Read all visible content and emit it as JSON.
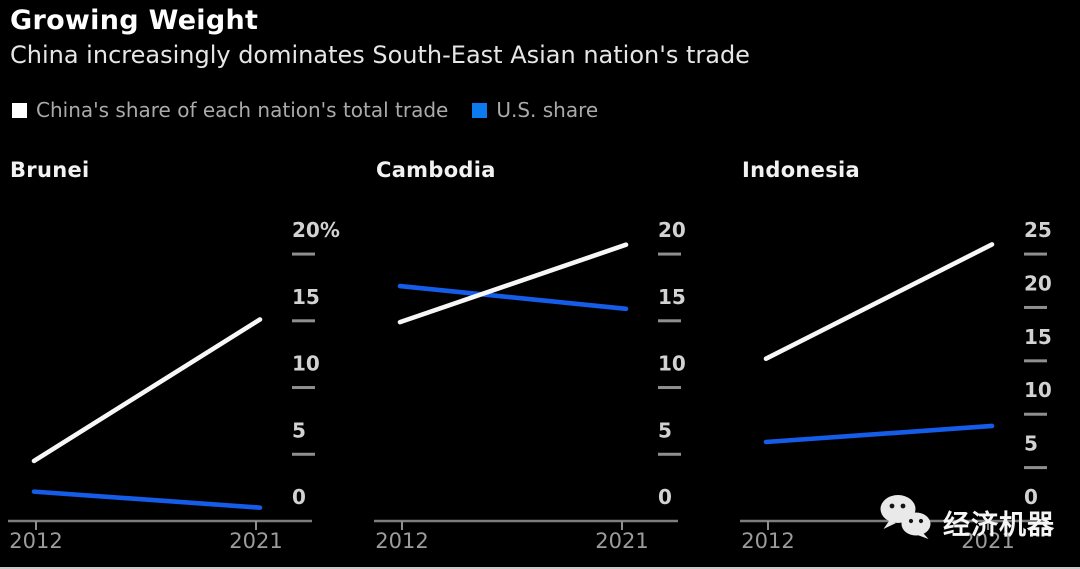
{
  "header": {
    "title": "Growing Weight",
    "subtitle": "China increasingly dominates South-East Asian nation's trade"
  },
  "legend": {
    "china_label": "China's share of each nation's total trade",
    "us_label": "U.S. share"
  },
  "watermark": {
    "icon": "wechat-icon",
    "text": "经济机器"
  },
  "colors": {
    "background": "#000000",
    "china_line": "#f7f7f7",
    "us_line": "#155de8",
    "legend_china_swatch": "#ffffff",
    "legend_us_swatch": "#0d7bf0",
    "axis_line": "#7d7d7d",
    "tick_dash": "#8f8f8f",
    "tick_label": "#d2d2d2",
    "year_label": "#9c9c9c",
    "chart_title": "#f2f2f2"
  },
  "chart_data": {
    "type": "line",
    "unit": "percent of total trade",
    "x_categories": [
      "2012",
      "2021"
    ],
    "legend_position": "top-left",
    "grid": false,
    "charts": [
      {
        "title": "Brunei",
        "ylim": [
          0,
          24.8
        ],
        "yticks": [
          0,
          5,
          10,
          15,
          20
        ],
        "ytick_labels": [
          "0",
          "5",
          "10",
          "15",
          "20%"
        ],
        "series": [
          {
            "name": "China's share",
            "color_key": "china_line",
            "values": [
              4.5,
              15.1
            ]
          },
          {
            "name": "U.S. share",
            "color_key": "us_line",
            "values": [
              2.2,
              1.0
            ]
          }
        ]
      },
      {
        "title": "Cambodia",
        "ylim": [
          0,
          24.8
        ],
        "yticks": [
          0,
          5,
          10,
          15,
          20
        ],
        "ytick_labels": [
          "0",
          "5",
          "10",
          "15",
          "20"
        ],
        "series": [
          {
            "name": "China's share",
            "color_key": "china_line",
            "values": [
              14.9,
              20.7
            ]
          },
          {
            "name": "U.S. share",
            "color_key": "us_line",
            "values": [
              17.6,
              15.9
            ]
          }
        ]
      },
      {
        "title": "Indonesia",
        "ylim": [
          0,
          31
        ],
        "yticks": [
          0,
          5,
          10,
          15,
          20,
          25
        ],
        "ytick_labels": [
          "0",
          "5",
          "10",
          "15",
          "20",
          "25"
        ],
        "series": [
          {
            "name": "China's share",
            "color_key": "china_line",
            "values": [
              15.2,
              25.9
            ]
          },
          {
            "name": "U.S. share",
            "color_key": "us_line",
            "values": [
              7.4,
              8.9
            ]
          }
        ]
      }
    ]
  }
}
